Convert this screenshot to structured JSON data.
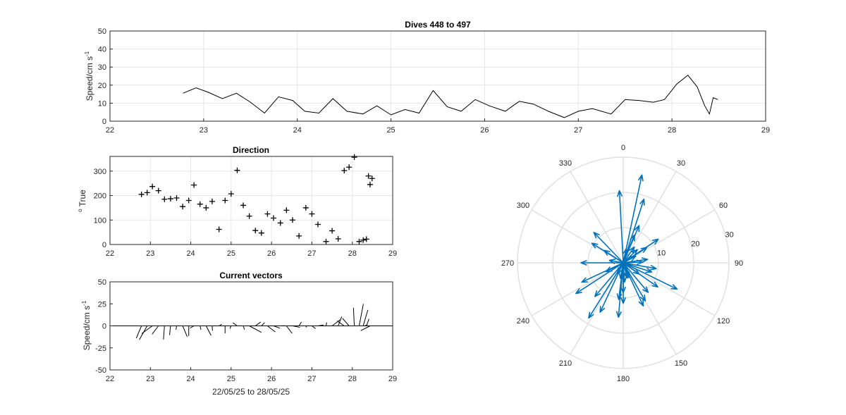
{
  "chart_data": [
    {
      "type": "line",
      "title": "Dives 448 to 497",
      "ylabel": "Speed/cm s",
      "ylabel_sup": "-1",
      "xlim": [
        22,
        29
      ],
      "ylim": [
        0,
        50
      ],
      "xticks": [
        "22",
        "23",
        "24",
        "25",
        "26",
        "27",
        "28",
        "29"
      ],
      "yticks": [
        "0",
        "10",
        "20",
        "30",
        "40",
        "50"
      ],
      "grid": true,
      "series": [
        {
          "x": [
            22.78,
            22.92,
            23.05,
            23.2,
            23.35,
            23.5,
            23.65,
            23.8,
            23.95,
            24.08,
            24.23,
            24.38,
            24.53,
            24.7,
            24.85,
            25.0,
            25.15,
            25.3,
            25.45,
            25.6,
            25.75,
            25.9,
            26.05,
            26.22,
            26.37,
            26.52,
            26.68,
            26.85,
            27.0,
            27.15,
            27.35,
            27.5,
            27.65,
            27.8,
            27.92,
            28.05,
            28.17,
            28.27,
            28.35,
            28.4,
            28.44,
            28.49
          ],
          "y": [
            15.5,
            18.5,
            16,
            12.5,
            15.5,
            10.5,
            4.5,
            13.5,
            11.5,
            5.5,
            4.5,
            12.5,
            5.5,
            4,
            8.5,
            3.5,
            6.5,
            4.5,
            17,
            8,
            5.5,
            12,
            8.5,
            5.5,
            11,
            9.5,
            5.5,
            2,
            5.5,
            7,
            4,
            12,
            11.5,
            10.5,
            12,
            20.5,
            25.5,
            19,
            8.5,
            4,
            13,
            12
          ]
        }
      ]
    },
    {
      "type": "scatter",
      "title": "Direction",
      "ylabel": "True",
      "ylabel_prefix": "o",
      "xlim": [
        22,
        29
      ],
      "ylim": [
        0,
        360
      ],
      "xticks": [
        "22",
        "23",
        "24",
        "25",
        "26",
        "27",
        "28",
        "29"
      ],
      "yticks": [
        "0",
        "100",
        "200",
        "300"
      ],
      "grid": true,
      "marker": "+",
      "series": [
        {
          "x": [
            22.78,
            22.92,
            23.05,
            23.2,
            23.35,
            23.5,
            23.65,
            23.8,
            23.95,
            24.08,
            24.23,
            24.38,
            24.53,
            24.7,
            24.85,
            25.0,
            25.15,
            25.3,
            25.45,
            25.6,
            25.75,
            25.9,
            26.05,
            26.22,
            26.37,
            26.52,
            26.68,
            26.85,
            27.0,
            27.15,
            27.35,
            27.5,
            27.65,
            27.8,
            27.92,
            28.05,
            28.17,
            28.27,
            28.35,
            28.4,
            28.44,
            28.49
          ],
          "y": [
            205,
            212,
            237,
            220,
            185,
            187,
            190,
            155,
            180,
            243,
            165,
            150,
            176,
            62,
            180,
            207,
            303,
            160,
            116,
            57,
            47,
            125,
            108,
            88,
            140,
            100,
            35,
            150,
            125,
            82,
            12,
            56,
            23,
            302,
            316,
            357,
            12,
            18,
            22,
            280,
            245,
            270
          ]
        }
      ]
    },
    {
      "type": "vector",
      "title": "Current vectors",
      "xlabel": "22/05/25 to 28/05/25",
      "ylabel": "Speed/cm s",
      "ylabel_sup": "-1",
      "xlim": [
        22,
        29
      ],
      "ylim": [
        -50,
        50
      ],
      "xticks": [
        "22",
        "23",
        "24",
        "25",
        "26",
        "27",
        "28",
        "29"
      ],
      "yticks": [
        "-50",
        "-25",
        "0",
        "25",
        "50"
      ],
      "grid": false
    },
    {
      "type": "compass",
      "r_max": 30,
      "r_ticks": [
        "10",
        "20",
        "30"
      ],
      "angle_labels": [
        "0",
        "30",
        "60",
        "90",
        "120",
        "150",
        "180",
        "210",
        "240",
        "270",
        "300",
        "330"
      ],
      "color": "#0072BD"
    }
  ]
}
